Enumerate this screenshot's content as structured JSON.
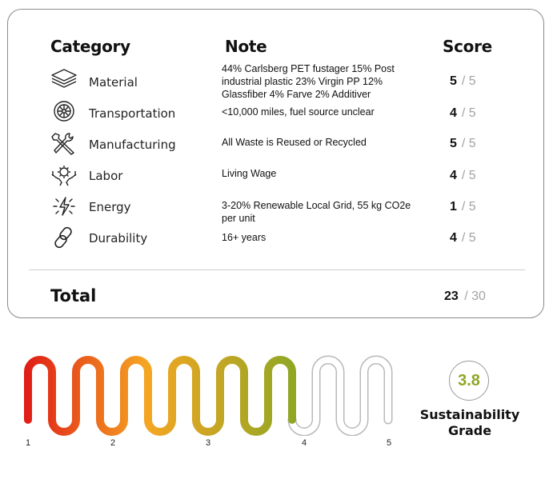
{
  "headers": {
    "category": "Category",
    "note": "Note",
    "score": "Score"
  },
  "rows": [
    {
      "icon": "layers-icon",
      "category": "Material",
      "note": "44% Carlsberg PET fustager 15% Post industrial plastic 23% Virgin PP 12% Glassfiber 4% Farve 2% Additiver",
      "score": "5",
      "max": "/ 5"
    },
    {
      "icon": "wheel-icon",
      "category": "Transportation",
      "note": "<10,000 miles, fuel source unclear",
      "score": "4",
      "max": "/ 5"
    },
    {
      "icon": "tools-icon",
      "category": "Manufacturing",
      "note": "All Waste is Reused or Recycled",
      "score": "5",
      "max": "/ 5"
    },
    {
      "icon": "hands-gear-icon",
      "category": "Labor",
      "note": "Living Wage",
      "score": "4",
      "max": "/ 5"
    },
    {
      "icon": "energy-bolt-icon",
      "category": "Energy",
      "note": "3-20% Renewable Local Grid, 55 kg CO2e per unit",
      "score": "1",
      "max": "/ 5"
    },
    {
      "icon": "chain-link-icon",
      "category": "Durability",
      "note": "16+ years",
      "score": "4",
      "max": "/ 5"
    }
  ],
  "total": {
    "label": "Total",
    "score": "23",
    "max": "/ 30"
  },
  "gauge": {
    "ticks": [
      "1",
      "2",
      "3",
      "4",
      "5"
    ],
    "value": 3.8,
    "colors": {
      "low": "#e01b16",
      "mid": "#f5a623",
      "high": "#8ea724",
      "empty_outline": "#b8b8b8"
    }
  },
  "grade": {
    "value": "3.8",
    "label_line1": "Sustainability",
    "label_line2": "Grade"
  }
}
